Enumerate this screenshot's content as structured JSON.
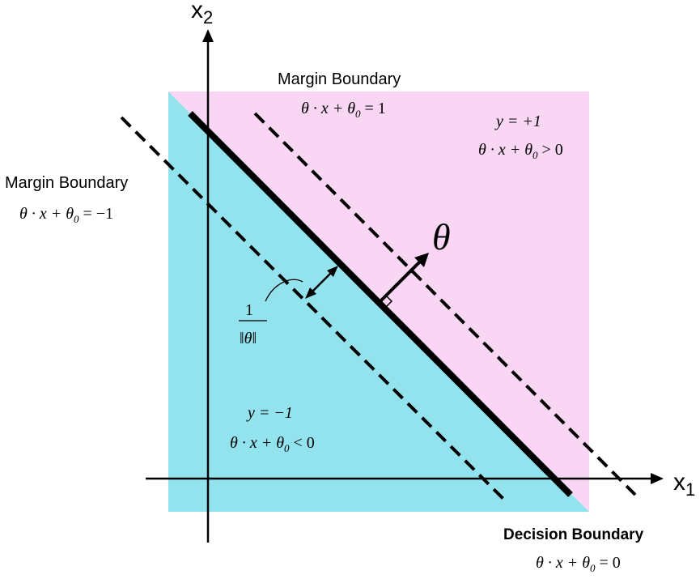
{
  "axes": {
    "x_label": "x",
    "x_sub": "1",
    "y_label": "x",
    "y_sub": "2"
  },
  "regions": {
    "positive_color": "#f9d6f3",
    "negative_color": "#93e3ee"
  },
  "labels": {
    "top_margin_title": "Margin Boundary",
    "top_margin_eq": {
      "pre": "θ · x + θ",
      "sub": "0",
      "post": " = 1"
    },
    "left_margin_title": "Margin Boundary",
    "left_margin_eq": {
      "pre": "θ · x + θ",
      "sub": "0",
      "post": " = −1"
    },
    "decision_title": "Decision Boundary",
    "decision_eq": {
      "pre": "θ · x + θ",
      "sub": "0",
      "post": " = 0"
    },
    "positive_class": "y = +1",
    "positive_eq": {
      "pre": "θ · x + θ",
      "sub": "0",
      "post": " > 0"
    },
    "negative_class": "y = −1",
    "negative_eq": {
      "pre": "θ · x + θ",
      "sub": "0",
      "post": " < 0"
    },
    "theta": "θ",
    "margin_numerator": "1",
    "margin_denominator": "‖θ‖"
  }
}
